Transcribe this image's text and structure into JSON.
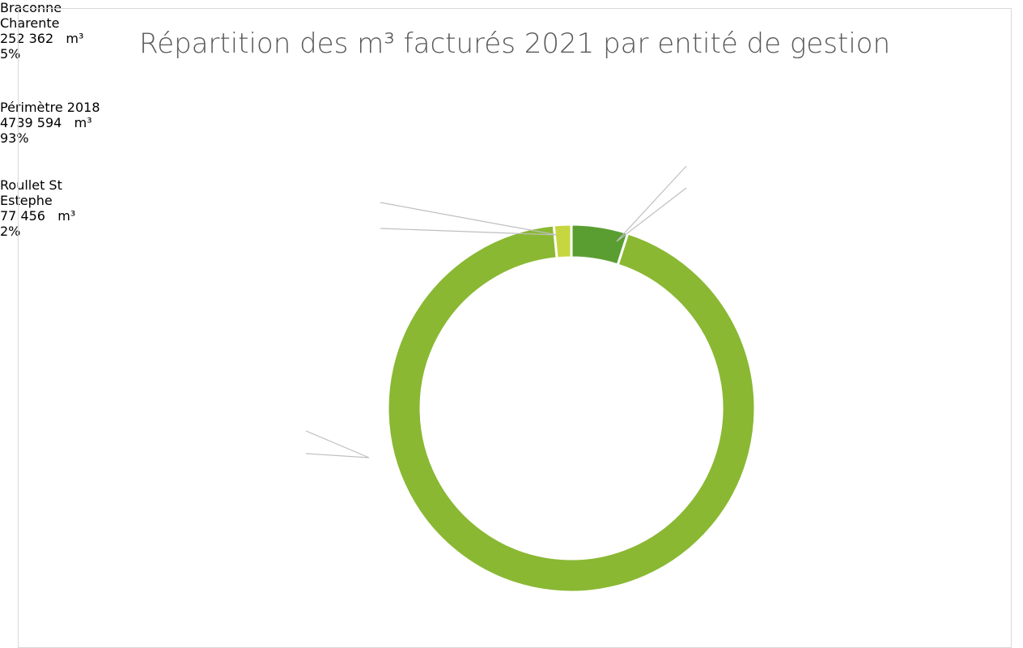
{
  "chart_data": {
    "type": "doughnut",
    "title": "Répartition des m³ facturés 2021 par entité de gestion",
    "categories": [
      "Braconne Charente",
      "Périmètre 2018",
      "Roullet St Estephe"
    ],
    "values": [
      252362,
      4739594,
      77456
    ],
    "value_labels": [
      "252 362   m³",
      "4739 594   m³",
      "77 456   m³"
    ],
    "percent_labels": [
      "5%",
      "93%",
      "2%"
    ],
    "colors": [
      "#5a9e32",
      "#8ab833",
      "#c6d63e"
    ]
  }
}
